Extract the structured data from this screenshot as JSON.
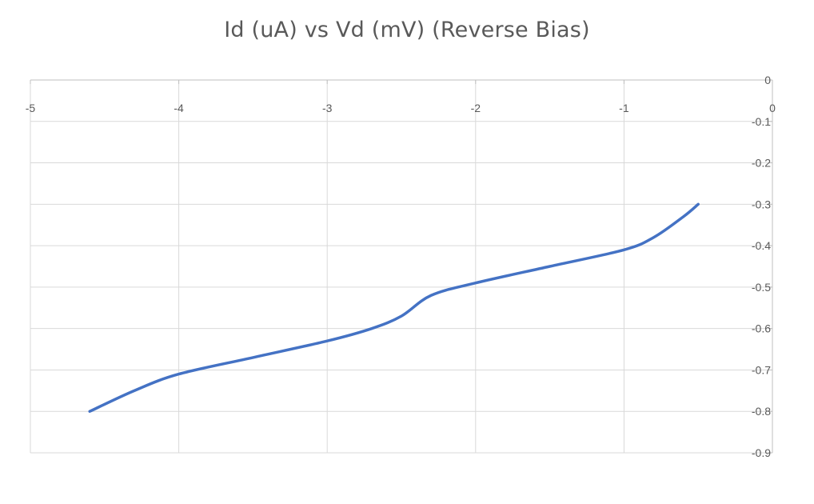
{
  "chart_data": {
    "type": "line",
    "title": "Id (uA) vs Vd (mV) (Reverse Bias)",
    "xlabel": "",
    "ylabel": "",
    "xlim": [
      -5,
      0
    ],
    "ylim": [
      -0.9,
      0
    ],
    "x_ticks": [
      "-5",
      "-4",
      "-3",
      "-2",
      "-1",
      "0"
    ],
    "y_ticks": [
      "0",
      "-0.1",
      "-0.2",
      "-0.3",
      "-0.4",
      "-0.5",
      "-0.6",
      "-0.7",
      "-0.8",
      "-0.9"
    ],
    "grid": true,
    "legend": "none",
    "series": [
      {
        "color": "#4472c4",
        "x": [
          -4.6,
          -4.3,
          -4.0,
          -3.5,
          -3.0,
          -2.7,
          -2.5,
          -2.3,
          -2.0,
          -1.5,
          -1.0,
          -0.8,
          -0.6,
          -0.5
        ],
        "y": [
          -0.8,
          -0.75,
          -0.71,
          -0.67,
          -0.63,
          -0.6,
          -0.57,
          -0.52,
          -0.49,
          -0.45,
          -0.41,
          -0.38,
          -0.33,
          -0.3
        ]
      }
    ]
  }
}
